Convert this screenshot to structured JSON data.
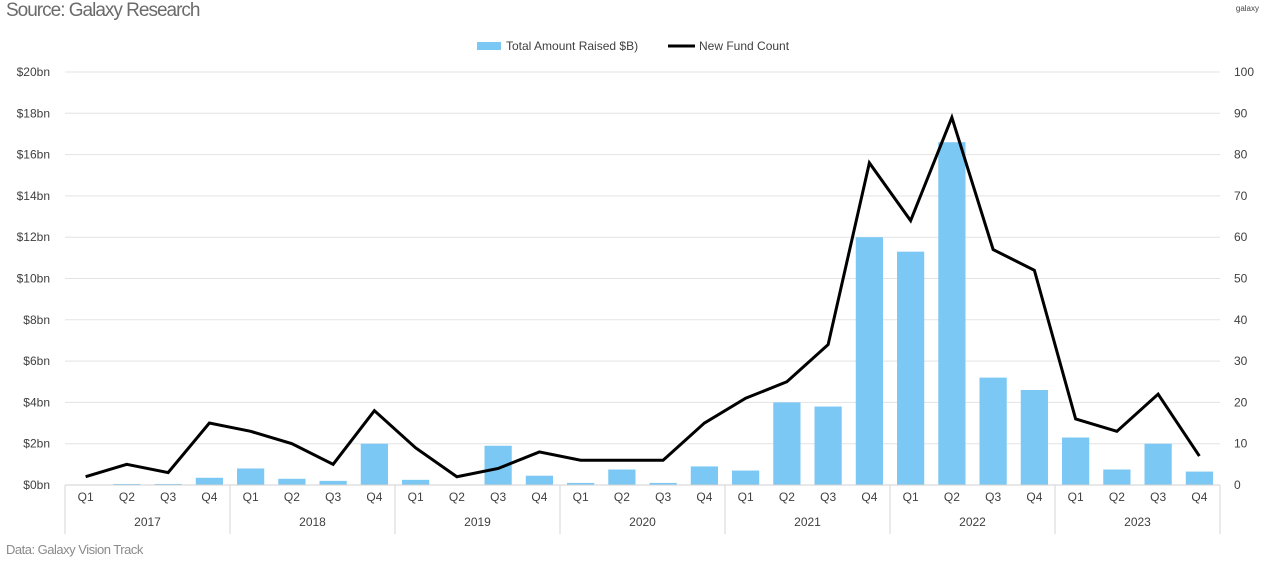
{
  "source": "Source: Galaxy Research",
  "logo": "galaxy",
  "footnote": "Data: Galaxy Vision Track",
  "chart_data": {
    "type": "bar+line",
    "categories": [
      "Q1",
      "Q2",
      "Q3",
      "Q4",
      "Q1",
      "Q2",
      "Q3",
      "Q4",
      "Q1",
      "Q2",
      "Q3",
      "Q4",
      "Q1",
      "Q2",
      "Q3",
      "Q4",
      "Q1",
      "Q2",
      "Q3",
      "Q4",
      "Q1",
      "Q2",
      "Q3",
      "Q4",
      "Q1",
      "Q2",
      "Q3",
      "Q4"
    ],
    "years": [
      "2017",
      "2018",
      "2019",
      "2020",
      "2021",
      "2022",
      "2023"
    ],
    "series": [
      {
        "name": "Total Amount Raised $B)",
        "type": "bar",
        "axis": "left",
        "color": "#7cc8f5",
        "values": [
          0.02,
          0.05,
          0.05,
          0.35,
          0.8,
          0.3,
          0.2,
          2.0,
          0.25,
          0,
          1.9,
          0.45,
          0.1,
          0.75,
          0.1,
          0.9,
          0.7,
          4.0,
          3.8,
          12.0,
          11.3,
          16.6,
          5.2,
          4.6,
          2.3,
          0.75,
          2.0,
          0.65
        ]
      },
      {
        "name": "New Fund Count",
        "type": "line",
        "axis": "right",
        "color": "#000000",
        "values": [
          2,
          5,
          3,
          15,
          13,
          10,
          5,
          18,
          9,
          2,
          4,
          8,
          6,
          6,
          6,
          15,
          21,
          25,
          34,
          78,
          64,
          89,
          57,
          52,
          16,
          13,
          22,
          7
        ]
      }
    ],
    "left_axis": {
      "ylim": [
        0,
        20
      ],
      "ticks": [
        "$0bn",
        "$2bn",
        "$4bn",
        "$6bn",
        "$8bn",
        "$10bn",
        "$12bn",
        "$14bn",
        "$16bn",
        "$18bn",
        "$20bn"
      ]
    },
    "right_axis": {
      "ylim": [
        0,
        100
      ],
      "ticks": [
        "0",
        "10",
        "20",
        "30",
        "40",
        "50",
        "60",
        "70",
        "80",
        "90",
        "100"
      ]
    },
    "grid": true,
    "legend": "top-center"
  }
}
